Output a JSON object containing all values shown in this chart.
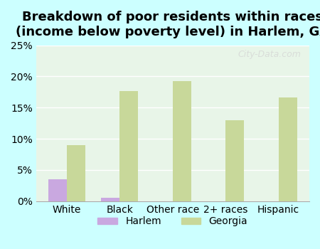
{
  "title": "Breakdown of poor residents within races\n(income below poverty level) in Harlem, GA",
  "categories": [
    "White",
    "Black",
    "Other race",
    "2+ races",
    "Hispanic"
  ],
  "harlem_values": [
    3.5,
    0.5,
    0.0,
    0.0,
    0.0
  ],
  "georgia_values": [
    9.0,
    17.7,
    19.2,
    13.0,
    16.6
  ],
  "harlem_color": "#c9a8e0",
  "georgia_color": "#c8d89a",
  "background_color": "#ccffff",
  "plot_bg_color": "#e8f5e8",
  "ylim": [
    0,
    25
  ],
  "yticks": [
    0,
    5,
    10,
    15,
    20,
    25
  ],
  "ytick_labels": [
    "0%",
    "5%",
    "10%",
    "15%",
    "20%",
    "25%"
  ],
  "bar_width": 0.35,
  "title_fontsize": 13,
  "tick_fontsize": 10,
  "legend_fontsize": 10,
  "watermark": "City-Data.com"
}
